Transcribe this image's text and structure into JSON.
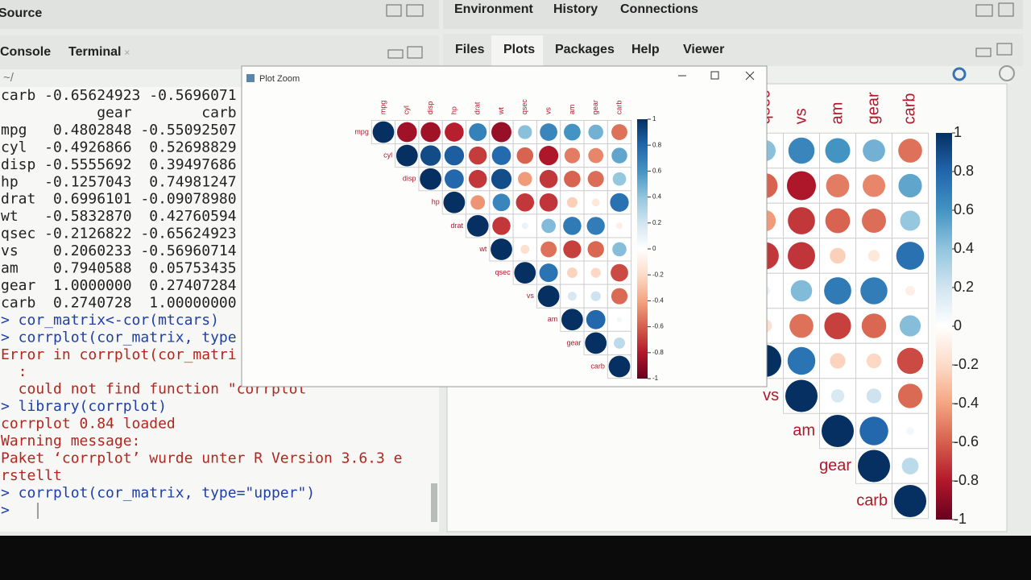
{
  "source_pane": {
    "title": "Source"
  },
  "console_pane": {
    "tabs": [
      "Console",
      "Terminal"
    ],
    "path": "~/",
    "lines": [
      {
        "text": "carb -0.65624923 -0.5696071",
        "color": "#222222"
      },
      {
        "text": "           gear        carb",
        "color": "#222222"
      },
      {
        "text": "mpg   0.4802848 -0.55092507",
        "color": "#222222"
      },
      {
        "text": "cyl  -0.4926866  0.52698829",
        "color": "#222222"
      },
      {
        "text": "disp -0.5555692  0.39497686",
        "color": "#222222"
      },
      {
        "text": "hp   -0.1257043  0.74981247",
        "color": "#222222"
      },
      {
        "text": "drat  0.6996101 -0.09078980",
        "color": "#222222"
      },
      {
        "text": "wt   -0.5832870  0.42760594",
        "color": "#222222"
      },
      {
        "text": "qsec -0.2126822 -0.65624923",
        "color": "#222222"
      },
      {
        "text": "vs    0.2060233 -0.56960714",
        "color": "#222222"
      },
      {
        "text": "am    0.7940588  0.05753435",
        "color": "#222222"
      },
      {
        "text": "gear  1.0000000  0.27407284",
        "color": "#222222"
      },
      {
        "text": "carb  0.2740728  1.00000000",
        "color": "#222222"
      },
      {
        "text": "> cor_matrix<-cor(mtcars)",
        "color": "#1f3fa8"
      },
      {
        "text": "> corrplot(cor_matrix, type",
        "color": "#1f3fa8"
      },
      {
        "text": "Error in corrplot(cor_matri",
        "color": "#b3261e"
      },
      {
        "text": "  :",
        "color": "#b3261e"
      },
      {
        "text": "  could not find function \"corrplot\"",
        "color": "#b3261e"
      },
      {
        "text": "> library(corrplot)",
        "color": "#1f3fa8"
      },
      {
        "text": "corrplot 0.84 loaded",
        "color": "#b3261e"
      },
      {
        "text": "Warning message:",
        "color": "#b3261e"
      },
      {
        "text": "Paket ‘corrplot’ wurde unter R Version 3.6.3 e",
        "color": "#b3261e"
      },
      {
        "text": "rstellt",
        "color": "#b3261e"
      },
      {
        "text": "> corrplot(cor_matrix, type=\"upper\")",
        "color": "#1f3fa8"
      },
      {
        "text": ">",
        "color": "#1f3fa8"
      }
    ]
  },
  "right_top": {
    "tabs": [
      "Environment",
      "History",
      "Connections"
    ]
  },
  "right_bottom": {
    "tabs": [
      "Files",
      "Plots",
      "Packages",
      "Help",
      "Viewer"
    ]
  },
  "plot_zoom": {
    "title": "Plot Zoom"
  },
  "corrplot": {
    "variables": [
      "mpg",
      "cyl",
      "disp",
      "hp",
      "drat",
      "wt",
      "qsec",
      "vs",
      "am",
      "gear",
      "carb"
    ],
    "upper": [
      [
        1,
        -0.85,
        -0.85,
        -0.78,
        0.68,
        -0.87,
        0.42,
        0.66,
        0.6,
        0.48,
        -0.55
      ],
      [
        1,
        0.9,
        0.83,
        -0.7,
        0.78,
        -0.59,
        -0.81,
        -0.52,
        -0.49,
        0.53
      ],
      [
        1,
        0.79,
        -0.71,
        0.89,
        -0.43,
        -0.71,
        -0.59,
        -0.56,
        0.39
      ],
      [
        1,
        -0.45,
        0.66,
        -0.71,
        -0.72,
        -0.24,
        -0.13,
        0.75
      ],
      [
        1,
        -0.71,
        0.09,
        0.44,
        0.71,
        0.7,
        -0.09
      ],
      [
        1,
        -0.17,
        -0.55,
        -0.69,
        -0.58,
        0.43
      ],
      [
        1,
        0.74,
        -0.23,
        -0.21,
        -0.66
      ],
      [
        1,
        0.17,
        0.21,
        -0.57
      ],
      [
        1,
        0.79,
        0.06
      ],
      [
        1,
        0.27
      ],
      [
        1
      ]
    ],
    "ticks": [
      1,
      0.8,
      0.6,
      0.4,
      0.2,
      0,
      -0.2,
      -0.4,
      -0.6,
      -0.8,
      -1
    ]
  }
}
